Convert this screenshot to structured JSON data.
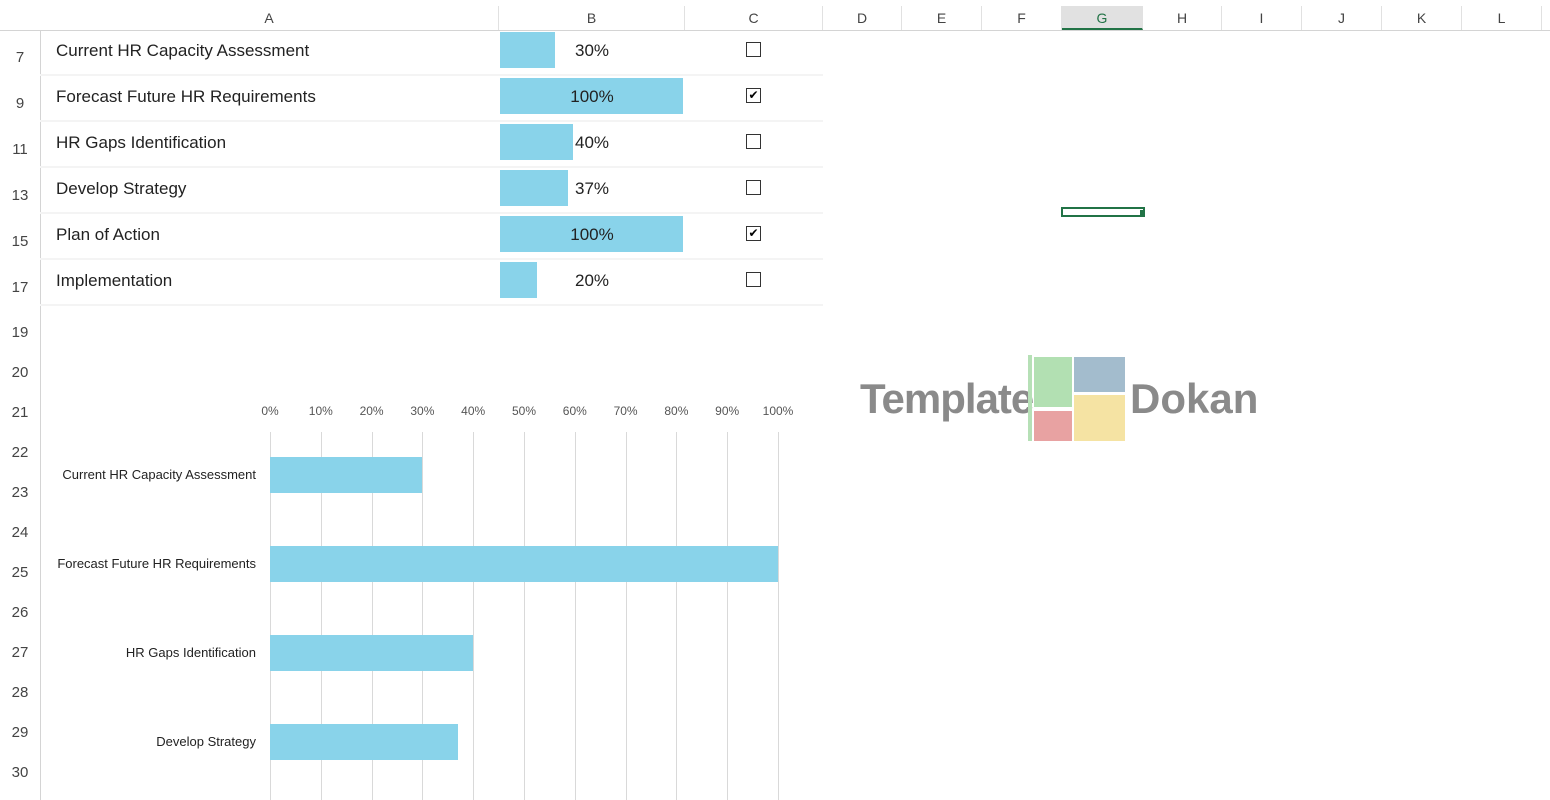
{
  "columns": [
    "A",
    "B",
    "C",
    "D",
    "E",
    "F",
    "G",
    "H",
    "I",
    "J",
    "K",
    "L"
  ],
  "selected_column": "G",
  "rows": [
    "7",
    "9",
    "11",
    "13",
    "15",
    "17",
    "19",
    "20",
    "21",
    "22",
    "23",
    "24",
    "25",
    "26",
    "27",
    "28",
    "29",
    "30"
  ],
  "tasks": [
    {
      "name": "Current HR Capacity Assessment",
      "progress": 30,
      "progress_label": "30%",
      "done": false,
      "check": ""
    },
    {
      "name": "Forecast Future HR Requirements",
      "progress": 100,
      "progress_label": "100%",
      "done": true,
      "check": "✔"
    },
    {
      "name": "HR Gaps Identification",
      "progress": 40,
      "progress_label": "40%",
      "done": false,
      "check": ""
    },
    {
      "name": "Develop Strategy",
      "progress": 37,
      "progress_label": "37%",
      "done": false,
      "check": ""
    },
    {
      "name": "Plan of Action",
      "progress": 100,
      "progress_label": "100%",
      "done": true,
      "check": "✔"
    },
    {
      "name": "Implementation",
      "progress": 20,
      "progress_label": "20%",
      "done": false,
      "check": ""
    }
  ],
  "watermark": "Template Dokan",
  "chart_data": {
    "type": "bar",
    "orientation": "horizontal",
    "categories": [
      "Current HR Capacity Assessment",
      "Forecast Future HR Requirements",
      "HR Gaps Identification",
      "Develop Strategy"
    ],
    "values": [
      30,
      100,
      40,
      37
    ],
    "xlim": [
      0,
      100
    ],
    "ticks": [
      "0%",
      "10%",
      "20%",
      "30%",
      "40%",
      "50%",
      "60%",
      "70%",
      "80%",
      "90%",
      "100%"
    ],
    "grid": true,
    "title": "",
    "xlabel": "",
    "ylabel": ""
  }
}
